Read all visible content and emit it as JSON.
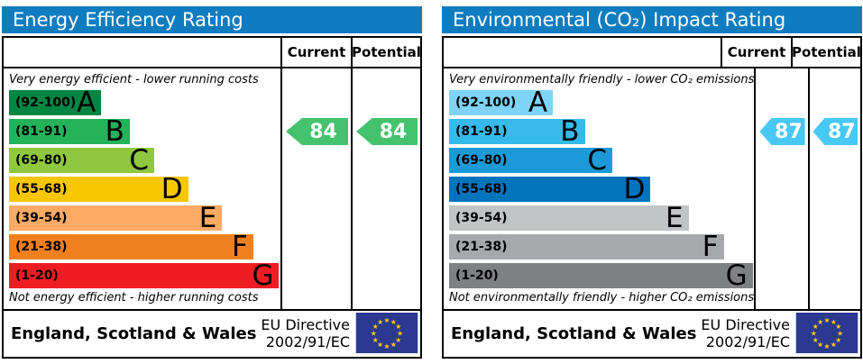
{
  "theme": {
    "header_color": "#0f7cc0",
    "border_color": "#000000",
    "eu_flag": {
      "bg": "#2b3990",
      "star_color": "#ffcc00",
      "star_char": "★"
    }
  },
  "chart_data": [
    {
      "type": "bar",
      "title": "Energy Efficiency Rating",
      "categories": [
        "A (92-100)",
        "B (81-91)",
        "C (69-80)",
        "D (55-68)",
        "E (39-54)",
        "F (21-38)",
        "G (1-20)"
      ],
      "current": 84,
      "potential": 84,
      "current_band": "B",
      "potential_band": "B",
      "scale": [
        1,
        100
      ],
      "top_caption": "Very energy efficient - lower running costs",
      "bottom_caption": "Not energy efficient - higher running costs"
    },
    {
      "type": "bar",
      "title": "Environmental (CO₂) Impact Rating",
      "categories": [
        "A (92-100)",
        "B (81-91)",
        "C (69-80)",
        "D (55-68)",
        "E (39-54)",
        "F (21-38)",
        "G (1-20)"
      ],
      "current": 87,
      "potential": 87,
      "current_band": "B",
      "potential_band": "B",
      "scale": [
        1,
        100
      ],
      "top_caption": "Very environmentally friendly - lower CO₂ emissions",
      "bottom_caption": "Not environmentally friendly - higher CO₂ emissions"
    }
  ],
  "panels": [
    {
      "title": "Energy Efficiency Rating",
      "columns": {
        "current": "Current",
        "potential": "Potential"
      },
      "top_caption": "Very energy efficient - lower running costs",
      "bottom_caption": "Not energy efficient - higher running costs",
      "bands": [
        {
          "range": "(92-100)",
          "letter": "A",
          "color": "#008542",
          "width_pct": 34
        },
        {
          "range": "(81-91)",
          "letter": "B",
          "color": "#24b35a",
          "width_pct": 44.5
        },
        {
          "range": "(69-80)",
          "letter": "C",
          "color": "#8fc83f",
          "width_pct": 53.5
        },
        {
          "range": "(55-68)",
          "letter": "D",
          "color": "#f8c700",
          "width_pct": 66
        },
        {
          "range": "(39-54)",
          "letter": "E",
          "color": "#fcaa65",
          "width_pct": 78.5
        },
        {
          "range": "(21-38)",
          "letter": "F",
          "color": "#f0801f",
          "width_pct": 90
        },
        {
          "range": "(1-20)",
          "letter": "G",
          "color": "#f01c24",
          "width_pct": 99.5
        }
      ],
      "current": {
        "value": "84",
        "band_index": 1,
        "color": "#45c26e"
      },
      "potential": {
        "value": "84",
        "band_index": 1,
        "color": "#45c26e"
      },
      "footer": {
        "region": "England, Scotland & Wales",
        "directive_line1": "EU Directive",
        "directive_line2": "2002/91/EC"
      }
    },
    {
      "title": "Environmental (CO₂) Impact Rating",
      "columns": {
        "current": "Current",
        "potential": "Potential"
      },
      "top_caption": "Very environmentally friendly - lower CO₂ emissions",
      "bottom_caption": "Not environmentally friendly - higher CO₂ emissions",
      "bands": [
        {
          "range": "(92-100)",
          "letter": "A",
          "color": "#7ed3f7",
          "width_pct": 34
        },
        {
          "range": "(81-91)",
          "letter": "B",
          "color": "#35baea",
          "width_pct": 44.5
        },
        {
          "range": "(69-80)",
          "letter": "C",
          "color": "#1b9ad7",
          "width_pct": 53.5
        },
        {
          "range": "(55-68)",
          "letter": "D",
          "color": "#0073bd",
          "width_pct": 66
        },
        {
          "range": "(39-54)",
          "letter": "E",
          "color": "#c2c3c5",
          "width_pct": 78.5
        },
        {
          "range": "(21-38)",
          "letter": "F",
          "color": "#a6a8ab",
          "width_pct": 90
        },
        {
          "range": "(1-20)",
          "letter": "G",
          "color": "#7e8082",
          "width_pct": 99.5
        }
      ],
      "current": {
        "value": "87",
        "band_index": 1,
        "color": "#48c8f4"
      },
      "potential": {
        "value": "87",
        "band_index": 1,
        "color": "#48c8f4"
      },
      "footer": {
        "region": "England, Scotland & Wales",
        "directive_line1": "EU Directive",
        "directive_line2": "2002/91/EC"
      }
    }
  ]
}
